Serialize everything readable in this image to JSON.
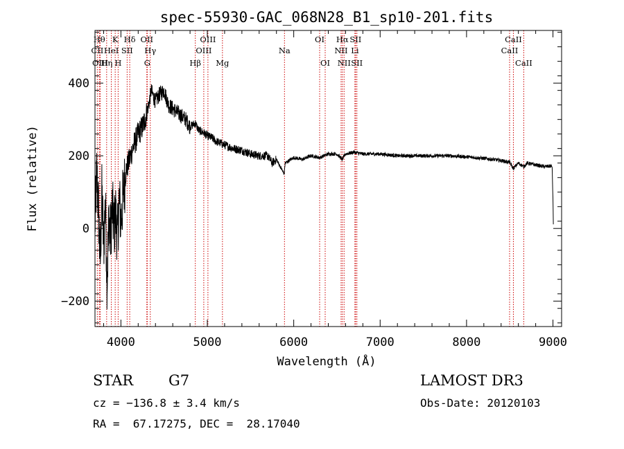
{
  "chart_data": {
    "type": "line",
    "title": "spec-55930-GAC_068N28_B1_sp10-201.fits",
    "xlabel": "Wavelength (Å)",
    "ylabel": "Flux (relative)",
    "xlim": [
      3700,
      9100
    ],
    "ylim": [
      -270,
      545
    ],
    "x_ticks": [
      4000,
      5000,
      6000,
      7000,
      8000,
      9000
    ],
    "y_ticks": [
      -200,
      0,
      200,
      400
    ],
    "grid": false,
    "legend": "none",
    "series": [
      {
        "x": [
          3700,
          3720,
          3740,
          3760,
          3780,
          3800,
          3820,
          3840,
          3860,
          3880,
          3900,
          3920,
          3940,
          3960,
          3980,
          4000,
          4030,
          4060,
          4100,
          4150,
          4200,
          4250,
          4280,
          4300,
          4330,
          4350,
          4380,
          4400,
          4450,
          4500,
          4550,
          4600,
          4650,
          4700,
          4750,
          4800,
          4860,
          4900,
          4950,
          5000,
          5050,
          5100,
          5150,
          5200,
          5250,
          5300,
          5400,
          5500,
          5600,
          5700,
          5750,
          5800,
          5890,
          5900,
          6000,
          6100,
          6200,
          6300,
          6400,
          6500,
          6560,
          6600,
          6700,
          6800,
          7000,
          7200,
          7500,
          7800,
          8000,
          8200,
          8400,
          8500,
          8540,
          8600,
          8662,
          8700,
          8800,
          8900,
          8990,
          9000,
          9005
        ],
        "y": [
          10,
          150,
          60,
          -100,
          100,
          -50,
          80,
          -150,
          30,
          -20,
          60,
          0,
          40,
          -30,
          80,
          20,
          100,
          160,
          190,
          230,
          260,
          280,
          300,
          320,
          350,
          380,
          360,
          350,
          370,
          380,
          340,
          330,
          320,
          310,
          300,
          280,
          290,
          270,
          265,
          255,
          250,
          240,
          235,
          230,
          225,
          220,
          215,
          205,
          200,
          200,
          180,
          190,
          150,
          180,
          195,
          190,
          200,
          195,
          205,
          205,
          190,
          205,
          210,
          205,
          205,
          200,
          200,
          200,
          197,
          193,
          187,
          182,
          165,
          180,
          170,
          180,
          175,
          170,
          172,
          80,
          0
        ]
      }
    ],
    "spectral_lines": [
      {
        "label": "CII",
        "wl": 3727,
        "row": 1
      },
      {
        "label": "Hθ",
        "wl": 3750,
        "row": 0
      },
      {
        "label": "OIII",
        "wl": 3760,
        "row": 2
      },
      {
        "label": "Hη",
        "wl": 3835,
        "row": 2
      },
      {
        "label": "HeI",
        "wl": 3889,
        "row": 1
      },
      {
        "label": "K",
        "wl": 3934,
        "row": 0
      },
      {
        "label": "H",
        "wl": 3968,
        "row": 2
      },
      {
        "label": "SII",
        "wl": 4072,
        "row": 1
      },
      {
        "label": "Hδ",
        "wl": 4102,
        "row": 0
      },
      {
        "label": "OII",
        "wl": 4300,
        "row": 0
      },
      {
        "label": "Hγ",
        "wl": 4340,
        "row": 1
      },
      {
        "label": "G",
        "wl": 4305,
        "row": 2
      },
      {
        "label": "Hβ",
        "wl": 4861,
        "row": 2
      },
      {
        "label": "OIII",
        "wl": 4959,
        "row": 1
      },
      {
        "label": "OIII",
        "wl": 5007,
        "row": 0
      },
      {
        "label": "Mg",
        "wl": 5175,
        "row": 2
      },
      {
        "label": "Na",
        "wl": 5893,
        "row": 1
      },
      {
        "label": "OI",
        "wl": 6300,
        "row": 0
      },
      {
        "label": "OI",
        "wl": 6364,
        "row": 2
      },
      {
        "label": "NII",
        "wl": 6548,
        "row": 1
      },
      {
        "label": "Hα",
        "wl": 6563,
        "row": 0
      },
      {
        "label": "NII",
        "wl": 6583,
        "row": 2
      },
      {
        "label": "Li",
        "wl": 6708,
        "row": 1
      },
      {
        "label": "SII",
        "wl": 6716,
        "row": 0
      },
      {
        "label": "SII",
        "wl": 6731,
        "row": 2
      },
      {
        "label": "CaII",
        "wl": 8498,
        "row": 1
      },
      {
        "label": "CaII",
        "wl": 8542,
        "row": 0
      },
      {
        "label": "CaII",
        "wl": 8662,
        "row": 2
      }
    ]
  },
  "info": {
    "class": "STAR",
    "subclass": "G7",
    "survey": "LAMOST DR3",
    "cz": "cz = −136.8 ± 3.4 km/s",
    "obs_date": "Obs-Date: 20120103",
    "coords": "RA =  67.17275, DEC =  28.17040"
  },
  "colors": {
    "line": "#000000",
    "marker_lines": "#cc0000"
  }
}
